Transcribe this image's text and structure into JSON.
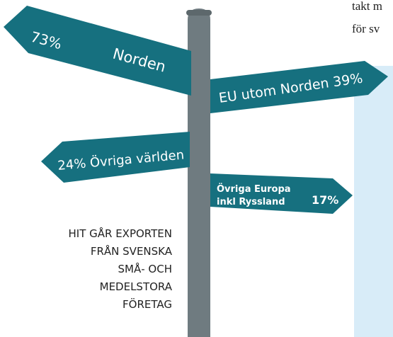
{
  "signs": [
    {
      "percent": "73%",
      "label": "Norden"
    },
    {
      "label": "EU utom Norden 39%"
    },
    {
      "label": "24% Övriga världen"
    },
    {
      "label_lines": [
        "Övriga Europa",
        "inkl Ryssland"
      ],
      "percent": "17%"
    }
  ],
  "caption": [
    "HIT GÅR EXPORTEN",
    "FRÅN SVENSKA",
    "SMÅ- OCH",
    "MEDELSTORA",
    "FÖRETAG"
  ],
  "side_text": [
    "takt m",
    "för sv"
  ]
}
